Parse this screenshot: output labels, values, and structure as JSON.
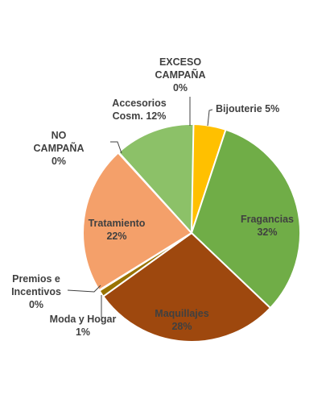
{
  "chart_data": {
    "type": "pie",
    "title": "",
    "start_angle": "12 o'clock",
    "direction": "clockwise",
    "slices": [
      {
        "name": "EXCESO CAMPAÑA",
        "value": 0,
        "label_lines": [
          "EXCESO",
          "CAMPAÑA",
          "0%"
        ],
        "color": "#5B9BD5"
      },
      {
        "name": "Bijouterie",
        "value": 5,
        "label_lines": [
          "Bijouterie 5%"
        ],
        "color": "#FFC000"
      },
      {
        "name": "Fragancias",
        "value": 32,
        "label_lines": [
          "Fragancias",
          "32%"
        ],
        "color": "#70AD47"
      },
      {
        "name": "Maquillajes",
        "value": 28,
        "label_lines": [
          "Maquillajes",
          "28%"
        ],
        "color": "#9E480E"
      },
      {
        "name": "Moda y Hogar",
        "value": 1,
        "label_lines": [
          "Moda y Hogar",
          "1%"
        ],
        "color": "#997300"
      },
      {
        "name": "Premios e Incentivos",
        "value": 0,
        "label_lines": [
          "Premios e",
          "Incentivos",
          "0%"
        ],
        "color": "#636363"
      },
      {
        "name": "Tratamiento",
        "value": 22,
        "label_lines": [
          "Tratamiento",
          "22%"
        ],
        "color": "#F4A06A"
      },
      {
        "name": "NO CAMPAÑA",
        "value": 0,
        "label_lines": [
          "NO",
          "CAMPAÑA",
          "0%"
        ],
        "color": "#264478"
      },
      {
        "name": "Accesorios Cosm.",
        "value": 12,
        "label_lines": [
          "Accesorios",
          "Cosm. 12%"
        ],
        "color": "#8CC168"
      }
    ]
  }
}
